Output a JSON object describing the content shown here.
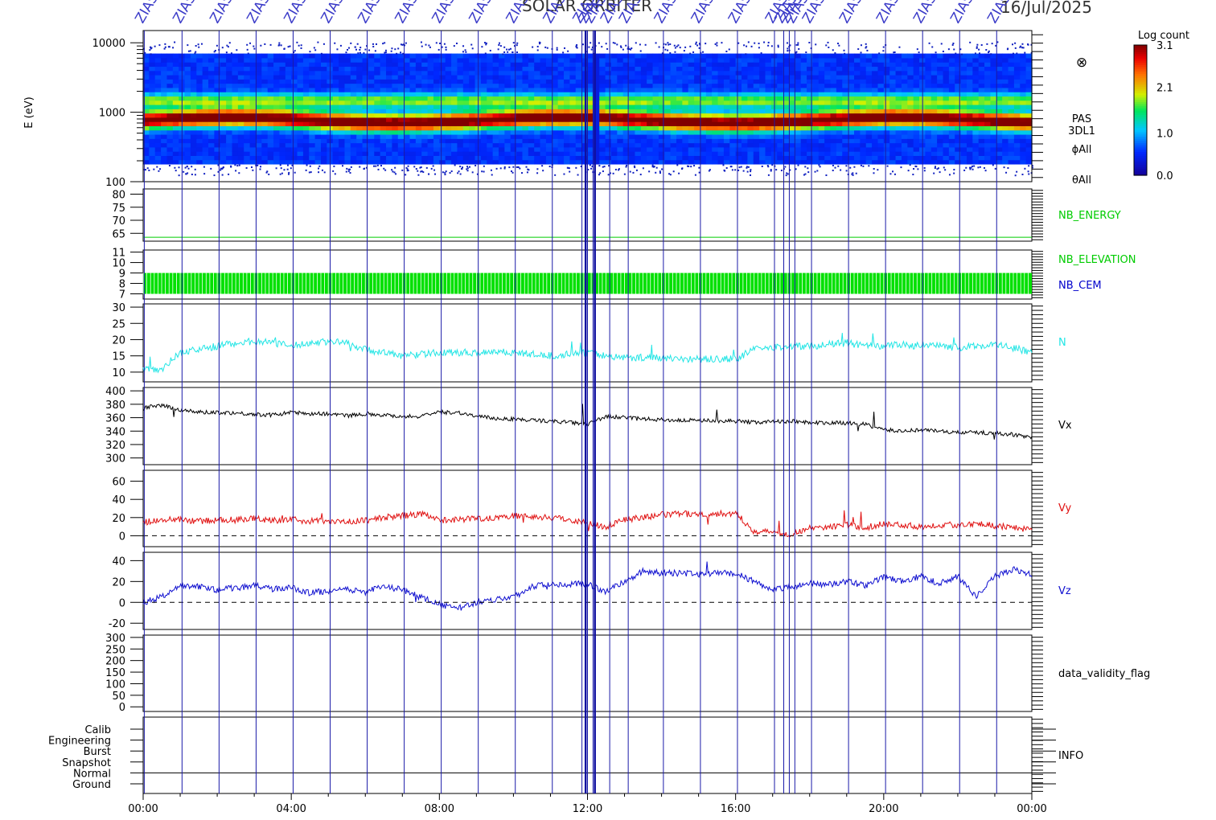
{
  "header": {
    "title": "SOLAR ORBITER",
    "date": "16/Jul/2025",
    "marker_label": "ZIAS"
  },
  "colorbar": {
    "title": "Log count",
    "ticks": [
      "3.1",
      "2.1",
      "1.0",
      "0.0"
    ],
    "values": [
      3.1,
      2.1,
      1.0,
      0.0
    ]
  },
  "x_axis": {
    "range_hours": [
      0,
      24
    ],
    "tick_labels": [
      "00:00",
      "04:00",
      "08:00",
      "12:00",
      "16:00",
      "20:00",
      "00:00"
    ],
    "tick_hours": [
      0,
      4,
      8,
      12,
      16,
      20,
      24
    ]
  },
  "event_markers_hours": [
    0.03,
    1.05,
    2.05,
    3.05,
    4.05,
    5.05,
    6.05,
    7.05,
    8.05,
    9.05,
    10.05,
    11.05,
    11.85,
    12.0,
    12.15,
    12.6,
    13.1,
    14.05,
    15.05,
    16.05,
    17.05,
    17.3,
    17.45,
    17.6,
    18.05,
    19.05,
    20.05,
    21.05,
    22.05,
    23.05
  ],
  "panels": {
    "spectrogram": {
      "ylabel": "E (eV)",
      "y_ticks": [
        "10000",
        "1000",
        "100"
      ],
      "y_range": [
        100,
        15000
      ],
      "right_labels": [
        "PAS",
        "3DL1",
        "ϕAll",
        "θAll"
      ],
      "symbol": "⊗"
    },
    "energy": {
      "label": "NB_ENERGY",
      "label_color": "#00cc00",
      "y_ticks": [
        "80",
        "75",
        "70",
        "65"
      ],
      "y_range": [
        62,
        82
      ]
    },
    "elevation": {
      "labels": [
        "NB_ELEVATION",
        "NB_CEM"
      ],
      "label_colors": [
        "#00cc00",
        "#0000cc"
      ],
      "y_ticks": [
        "11",
        "10",
        "9",
        "8",
        "7"
      ],
      "y_range": [
        6.5,
        11.2
      ]
    },
    "N": {
      "label": "N",
      "color": "#22e5e5",
      "y_ticks": [
        "30",
        "25",
        "20",
        "15",
        "10"
      ],
      "y_range": [
        7,
        31
      ]
    },
    "Vx": {
      "label": "Vx",
      "color": "#000000",
      "y_ticks": [
        "400",
        "380",
        "360",
        "340",
        "320",
        "300"
      ],
      "y_range": [
        290,
        405
      ]
    },
    "Vy": {
      "label": "Vy",
      "color": "#e01010",
      "y_ticks": [
        "60",
        "40",
        "20",
        "0"
      ],
      "y_range": [
        -12,
        72
      ]
    },
    "Vz": {
      "label": "Vz",
      "color": "#1010d0",
      "y_ticks": [
        "40",
        "20",
        "0",
        "-20"
      ],
      "y_range": [
        -26,
        48
      ]
    },
    "validity": {
      "label": "data_validity_flag",
      "y_ticks": [
        "300",
        "250",
        "200",
        "150",
        "100",
        "50",
        "0"
      ],
      "y_range": [
        -20,
        310
      ]
    },
    "info": {
      "label": "INFO",
      "y_ticks": [
        "Calib",
        "Engineering",
        "Burst",
        "Snapshot",
        "Normal",
        "Ground"
      ]
    }
  },
  "chart_data": {
    "type": "line",
    "title": "SOLAR ORBITER",
    "subtitle": "16/Jul/2025",
    "xlabel": "",
    "x_ticks": [
      "00:00",
      "04:00",
      "08:00",
      "12:00",
      "16:00",
      "20:00",
      "00:00"
    ],
    "spectrogram_bands_eV": {
      "peak": [
        600,
        1000
      ],
      "secondary": [
        1200,
        1800
      ],
      "extent": [
        180,
        7000
      ]
    },
    "series": [
      {
        "name": "N",
        "x_hours": [
          0,
          0.5,
          1.0,
          1.5,
          2.0,
          2.5,
          3.0,
          3.5,
          4.0,
          4.5,
          5.0,
          5.5,
          6.0,
          6.5,
          7.0,
          7.5,
          8.0,
          8.5,
          9.0,
          9.5,
          10.0,
          10.5,
          11.0,
          11.5,
          12.0,
          12.5,
          13.0,
          13.5,
          14.0,
          14.5,
          15.0,
          15.5,
          16.0,
          16.5,
          17.0,
          17.5,
          18.0,
          18.5,
          19.0,
          19.5,
          20.0,
          20.5,
          21.0,
          21.5,
          22.0,
          22.5,
          23.0,
          23.5,
          24.0
        ],
        "values": [
          11,
          11,
          16,
          17,
          18,
          19,
          19.5,
          19,
          18,
          19,
          19.5,
          19,
          17,
          16,
          15,
          15.5,
          16,
          16,
          16,
          16.5,
          16,
          15.5,
          15,
          15.5,
          16,
          15,
          14.5,
          14.5,
          14.5,
          14,
          14,
          14,
          14,
          17,
          17.5,
          18,
          18,
          18.5,
          19,
          18,
          18,
          18.5,
          18,
          18,
          17.5,
          18,
          18.5,
          17.5,
          16
        ]
      },
      {
        "name": "Vx",
        "x_hours": [
          0,
          0.5,
          1.0,
          1.5,
          2.0,
          2.5,
          3.0,
          3.5,
          4.0,
          4.5,
          5.0,
          5.5,
          6.0,
          6.5,
          7.0,
          7.5,
          8.0,
          8.5,
          9.0,
          9.5,
          10.0,
          10.5,
          11.0,
          11.5,
          12.0,
          12.5,
          13.0,
          13.5,
          14.0,
          14.5,
          15.0,
          15.5,
          16.0,
          16.5,
          17.0,
          17.5,
          18.0,
          18.5,
          19.0,
          19.5,
          20.0,
          20.5,
          21.0,
          21.5,
          22.0,
          22.5,
          23.0,
          23.5,
          24.0
        ],
        "values": [
          375,
          378,
          372,
          368,
          368,
          367,
          365,
          364,
          368,
          366,
          366,
          363,
          366,
          364,
          362,
          362,
          368,
          368,
          362,
          359,
          358,
          356,
          355,
          353,
          350,
          362,
          360,
          358,
          357,
          356,
          356,
          355,
          355,
          353,
          354,
          355,
          353,
          352,
          352,
          350,
          342,
          340,
          342,
          340,
          338,
          338,
          337,
          335,
          330
        ]
      },
      {
        "name": "Vy",
        "x_hours": [
          0,
          0.5,
          1.0,
          1.5,
          2.0,
          2.5,
          3.0,
          3.5,
          4.0,
          4.5,
          5.0,
          5.5,
          6.0,
          6.5,
          7.0,
          7.5,
          8.0,
          8.5,
          9.0,
          9.5,
          10.0,
          10.5,
          11.0,
          11.5,
          12.0,
          12.5,
          13.0,
          13.5,
          14.0,
          14.5,
          15.0,
          15.5,
          16.0,
          16.5,
          17.0,
          17.5,
          18.0,
          18.5,
          19.0,
          19.5,
          20.0,
          20.5,
          21.0,
          21.5,
          22.0,
          22.5,
          23.0,
          23.5,
          24.0
        ],
        "values": [
          15,
          17,
          18,
          16,
          17,
          18,
          19,
          17,
          18,
          16,
          17,
          15,
          17,
          20,
          22,
          24,
          17,
          18,
          19,
          20,
          22,
          21,
          20,
          18,
          14,
          10,
          18,
          20,
          23,
          24,
          24,
          24,
          25,
          5,
          4,
          2,
          8,
          10,
          12,
          9,
          13,
          12,
          10,
          12,
          12,
          14,
          11,
          10,
          6
        ]
      },
      {
        "name": "Vz",
        "x_hours": [
          0,
          0.5,
          1.0,
          1.5,
          2.0,
          2.5,
          3.0,
          3.5,
          4.0,
          4.5,
          5.0,
          5.5,
          6.0,
          6.5,
          7.0,
          7.5,
          8.0,
          8.5,
          9.0,
          9.5,
          10.0,
          10.5,
          11.0,
          11.5,
          12.0,
          12.5,
          13.0,
          13.5,
          14.0,
          14.5,
          15.0,
          15.5,
          16.0,
          16.5,
          17.0,
          17.5,
          18.0,
          18.5,
          19.0,
          19.5,
          20.0,
          20.5,
          21.0,
          21.5,
          22.0,
          22.5,
          23.0,
          23.5,
          24.0
        ],
        "values": [
          0,
          5,
          16,
          15,
          12,
          14,
          16,
          13,
          14,
          9,
          11,
          12,
          10,
          15,
          12,
          5,
          -2,
          -6,
          0,
          3,
          5,
          15,
          18,
          17,
          18,
          10,
          20,
          30,
          28,
          28,
          27,
          28,
          28,
          20,
          12,
          15,
          18,
          17,
          20,
          16,
          24,
          20,
          25,
          18,
          25,
          5,
          25,
          32,
          26
        ]
      }
    ]
  }
}
